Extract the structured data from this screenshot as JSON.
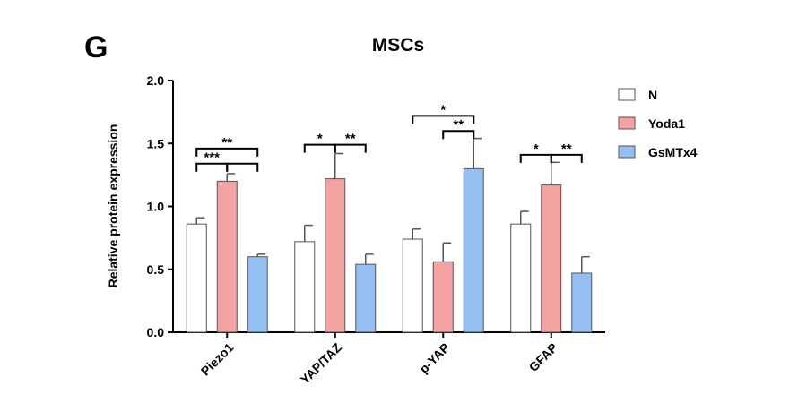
{
  "panel_label": "G",
  "chart_data": {
    "type": "bar",
    "title": "MSCs",
    "xlabel": "",
    "ylabel": "Relative protein expression",
    "ylim": [
      0,
      2.0
    ],
    "yticks": [
      "0.0",
      "0.5",
      "1.0",
      "1.5",
      "2.0"
    ],
    "ytick_values": [
      0,
      0.5,
      1.0,
      1.5,
      2.0
    ],
    "categories": [
      "Piezo1",
      "YAP/TAZ",
      "p-YAP",
      "GFAP"
    ],
    "series": [
      {
        "name": "N",
        "color": "#ffffff",
        "values": [
          0.86,
          0.72,
          0.74,
          0.86
        ],
        "errors": [
          0.05,
          0.13,
          0.08,
          0.1
        ]
      },
      {
        "name": "Yoda1",
        "color": "#f4a3a3",
        "values": [
          1.2,
          1.22,
          0.56,
          1.17
        ],
        "errors": [
          0.06,
          0.2,
          0.15,
          0.18
        ]
      },
      {
        "name": "GsMTx4",
        "color": "#93bff2",
        "values": [
          0.6,
          0.54,
          1.3,
          0.47
        ],
        "errors": [
          0.02,
          0.08,
          0.24,
          0.13
        ]
      }
    ],
    "significance": [
      {
        "category": 0,
        "from": 0,
        "to": 2,
        "label": "**",
        "level": 1.46
      },
      {
        "category": 0,
        "from": 0,
        "to": 1,
        "label": "***",
        "level": 1.34
      },
      {
        "category": 0,
        "from": 1,
        "to": 2,
        "label": "",
        "level": 1.34
      },
      {
        "category": 1,
        "from": 0,
        "to": 1,
        "label": "*",
        "level": 1.49
      },
      {
        "category": 1,
        "from": 1,
        "to": 2,
        "label": "**",
        "level": 1.49
      },
      {
        "category": 2,
        "from": 0,
        "to": 2,
        "label": "*",
        "level": 1.72
      },
      {
        "category": 2,
        "from": 1,
        "to": 2,
        "label": "**",
        "level": 1.6
      },
      {
        "category": 3,
        "from": 0,
        "to": 1,
        "label": "*",
        "level": 1.41
      },
      {
        "category": 3,
        "from": 1,
        "to": 2,
        "label": "**",
        "level": 1.41
      }
    ],
    "legend_position": "right"
  }
}
